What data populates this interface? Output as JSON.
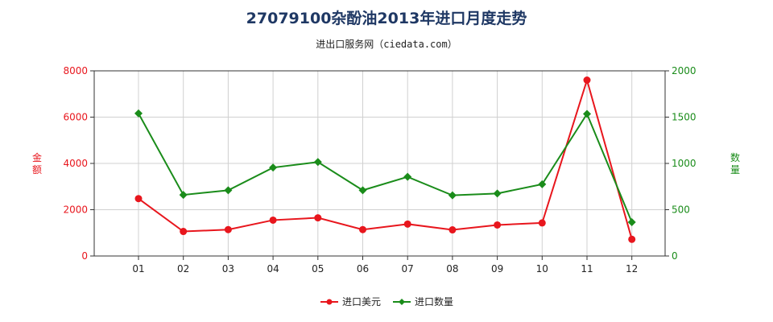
{
  "title": "27079100杂酚油2013年进口月度走势",
  "subtitle": "进出口服务网（ciedata.com）",
  "colors": {
    "amount": "#e8161d",
    "quantity": "#1a8c1a",
    "grid": "#d0d0d0",
    "axis_left": "#e8161d",
    "axis_right": "#1a8c1a"
  },
  "chart_data": {
    "type": "line",
    "categories": [
      "01",
      "02",
      "03",
      "04",
      "05",
      "06",
      "07",
      "08",
      "09",
      "10",
      "11",
      "12"
    ],
    "series": [
      {
        "name": "进口美元",
        "axis": "left",
        "marker": "circle",
        "values": [
          2480,
          1060,
          1140,
          1550,
          1650,
          1140,
          1380,
          1130,
          1340,
          1430,
          7600,
          720
        ]
      },
      {
        "name": "进口数量",
        "axis": "right",
        "marker": "diamond",
        "values": [
          1540,
          660,
          710,
          955,
          1015,
          710,
          855,
          655,
          675,
          775,
          1535,
          365
        ]
      }
    ],
    "ylabel_left": "金额",
    "ylabel_right": "数量",
    "ylim_left": [
      0,
      8000
    ],
    "ylim_right": [
      0,
      2000
    ],
    "yticks_left": [
      "0",
      "2000",
      "4000",
      "6000",
      "8000"
    ],
    "yticks_right": [
      "0",
      "500",
      "1000",
      "1500",
      "2000"
    ],
    "grid": true,
    "legend": "bottom-center"
  }
}
